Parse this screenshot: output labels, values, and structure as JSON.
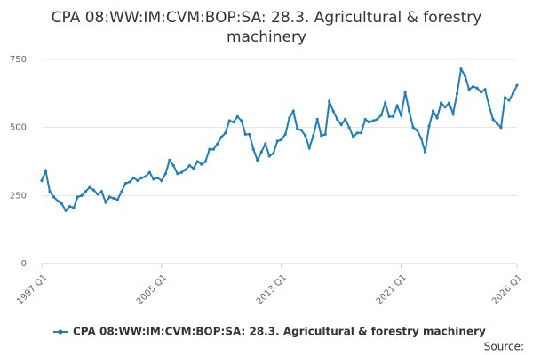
{
  "chart_data": {
    "type": "line",
    "title": "CPA 08:WW:IM:CVM:BOP:SA: 28.3. Agricultural & forestry machinery",
    "source": "Source:",
    "categories": [
      "1997 Q1",
      null,
      null,
      null,
      null,
      null,
      null,
      null,
      null,
      null,
      null,
      null,
      null,
      null,
      null,
      null,
      null,
      null,
      null,
      null,
      null,
      null,
      null,
      null,
      null,
      null,
      null,
      null,
      null,
      null,
      "2005 Q1",
      null,
      null,
      null,
      null,
      null,
      null,
      null,
      null,
      null,
      null,
      null,
      null,
      null,
      null,
      null,
      null,
      null,
      null,
      null,
      null,
      null,
      null,
      null,
      null,
      null,
      null,
      null,
      null,
      null,
      "2013 Q1",
      null,
      null,
      null,
      null,
      null,
      null,
      null,
      null,
      null,
      null,
      null,
      null,
      null,
      null,
      null,
      null,
      null,
      null,
      null,
      null,
      null,
      null,
      null,
      null,
      null,
      null,
      null,
      null,
      null,
      "2021 Q1",
      null,
      null,
      null,
      null,
      null,
      null,
      null,
      null,
      null,
      null,
      null,
      null,
      null,
      null,
      null,
      null,
      null,
      null,
      null,
      null,
      null,
      null,
      null,
      null,
      null,
      null,
      null,
      null,
      "2026 Q1"
    ],
    "series": [
      {
        "name": "CPA 08:WW:IM:CVM:BOP:SA: 28.3. Agricultural & forestry machinery",
        "color": "#1f7db8",
        "values": [
          305,
          340,
          265,
          245,
          230,
          220,
          195,
          210,
          205,
          245,
          250,
          265,
          280,
          270,
          255,
          265,
          225,
          245,
          240,
          235,
          265,
          295,
          300,
          315,
          305,
          315,
          320,
          335,
          310,
          315,
          305,
          330,
          380,
          360,
          330,
          335,
          345,
          360,
          350,
          375,
          365,
          375,
          420,
          420,
          440,
          465,
          480,
          525,
          520,
          540,
          525,
          475,
          475,
          420,
          380,
          410,
          440,
          395,
          405,
          450,
          455,
          475,
          535,
          560,
          495,
          490,
          470,
          425,
          470,
          530,
          470,
          475,
          595,
          560,
          530,
          510,
          530,
          500,
          465,
          480,
          480,
          530,
          520,
          525,
          530,
          545,
          590,
          540,
          540,
          580,
          545,
          630,
          560,
          500,
          490,
          460,
          410,
          505,
          560,
          535,
          590,
          575,
          590,
          550,
          625,
          715,
          690,
          640,
          650,
          645,
          630,
          640,
          580,
          530,
          515,
          500,
          610,
          600,
          625,
          655
        ]
      }
    ],
    "ylim": [
      0,
      750
    ],
    "yticks": [
      0,
      250,
      500,
      750
    ],
    "grid": true,
    "legend": "bottom"
  }
}
